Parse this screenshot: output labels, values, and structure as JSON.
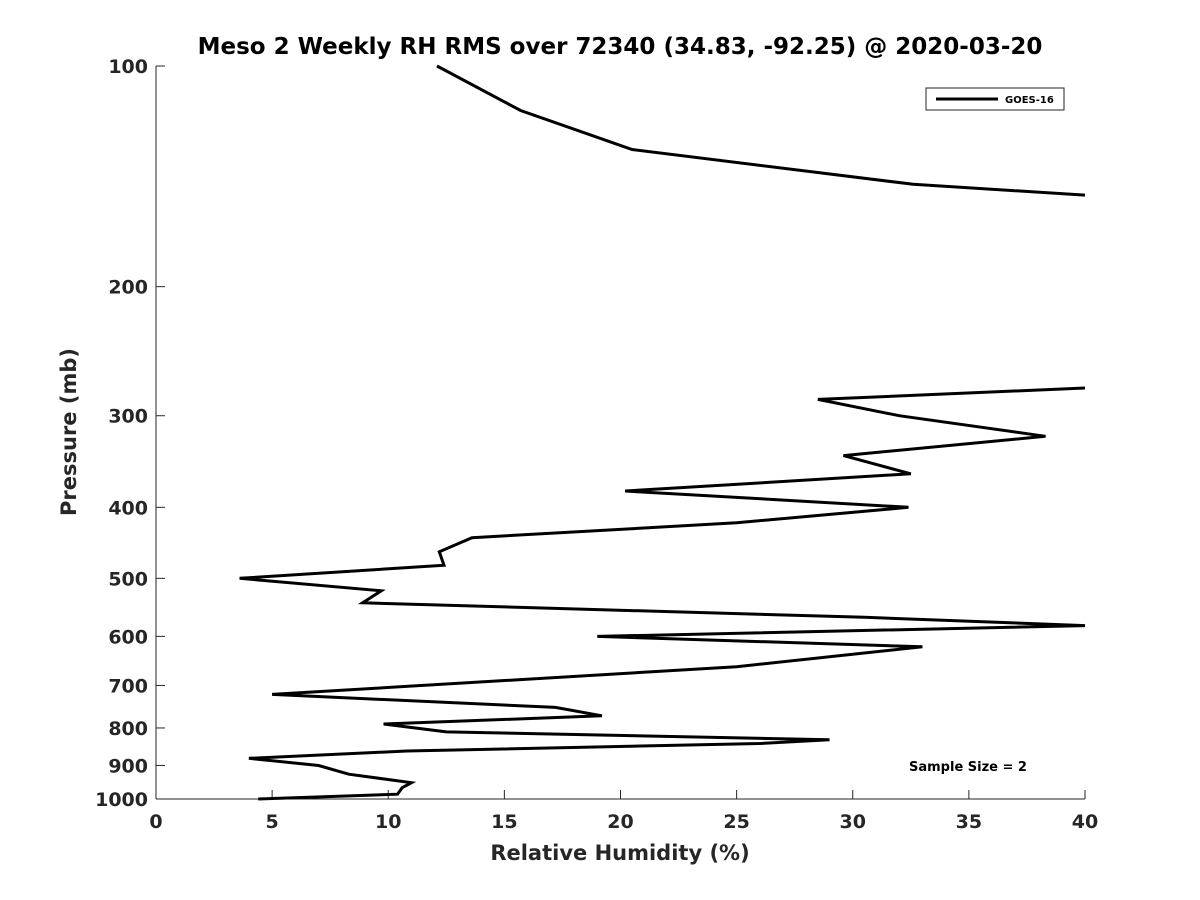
{
  "chart_data": {
    "type": "line",
    "title": "Meso 2 Weekly RH RMS over 72340 (34.83, -92.25) @ 2020-03-20",
    "xlabel": "Relative Humidity (%)",
    "ylabel": "Pressure (mb)",
    "xlim": [
      0,
      40
    ],
    "ylim": [
      100,
      1000
    ],
    "y_scale": "log",
    "y_reversed": true,
    "grid": false,
    "legend_position": "top-right",
    "x_ticks": [
      "0",
      "5",
      "10",
      "15",
      "20",
      "25",
      "30",
      "35",
      "40"
    ],
    "y_ticks": [
      "100",
      "200",
      "300",
      "400",
      "500",
      "600",
      "700",
      "800",
      "900",
      "1000"
    ],
    "annotation": "Sample Size = 2",
    "series": [
      {
        "name": "GOES-16",
        "color": "#000000",
        "segments": [
          {
            "x": [
              12.1,
              15.7,
              20.5,
              32.6,
              40.0
            ],
            "y": [
              100,
              115,
              130,
              145,
              150
            ]
          },
          {
            "x": [
              40.0,
              28.5,
              32.0,
              38.3,
              29.6,
              32.5,
              20.2,
              32.4,
              25.0,
              13.6,
              12.2,
              12.4,
              3.6,
              9.7,
              8.9,
              30.5,
              40.0,
              19.0,
              33.0,
              25.0,
              5.0,
              17.2,
              19.2,
              9.8,
              12.5,
              29.0,
              26.0,
              10.8,
              4.0,
              7.0,
              8.3,
              11.0,
              10.6,
              10.4,
              4.4
            ],
            "y": [
              275,
              285,
              300,
              320,
              340,
              360,
              380,
              400,
              420,
              440,
              460,
              480,
              500,
              520,
              540,
              565,
              580,
              600,
              620,
              660,
              720,
              750,
              770,
              790,
              810,
              830,
              840,
              860,
              880,
              900,
              925,
              950,
              965,
              985,
              1000
            ]
          }
        ]
      }
    ]
  }
}
